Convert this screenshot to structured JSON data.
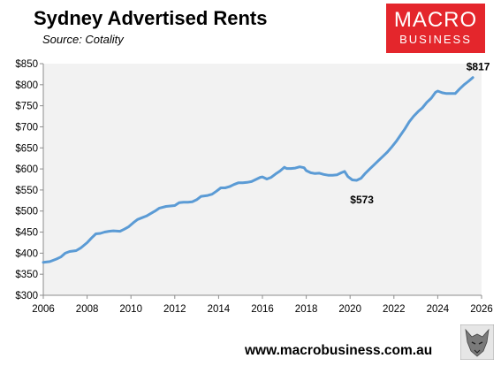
{
  "chart_data": {
    "type": "line",
    "title": "Sydney Advertised Rents",
    "subtitle": "Source: Cotality",
    "xlim": [
      2006,
      2026
    ],
    "ylim": [
      300,
      850
    ],
    "x_ticks": [
      2006,
      2008,
      2010,
      2012,
      2014,
      2016,
      2018,
      2020,
      2022,
      2024,
      2026
    ],
    "y_ticks": [
      "$300",
      "$350",
      "$400",
      "$450",
      "$500",
      "$550",
      "$600",
      "$650",
      "$700",
      "$750",
      "$800",
      "$850"
    ],
    "grid": false,
    "line_color": "#5b9bd5",
    "series": [
      {
        "values": [
          [
            2006.0,
            378
          ],
          [
            2006.3,
            380
          ],
          [
            2006.6,
            386
          ],
          [
            2006.8,
            391
          ],
          [
            2007.0,
            400
          ],
          [
            2007.2,
            404
          ],
          [
            2007.5,
            406
          ],
          [
            2007.7,
            412
          ],
          [
            2008.0,
            425
          ],
          [
            2008.2,
            436
          ],
          [
            2008.4,
            446
          ],
          [
            2008.6,
            447
          ],
          [
            2008.8,
            450
          ],
          [
            2009.0,
            452
          ],
          [
            2009.2,
            453
          ],
          [
            2009.5,
            452
          ],
          [
            2009.7,
            457
          ],
          [
            2009.9,
            463
          ],
          [
            2010.1,
            472
          ],
          [
            2010.3,
            480
          ],
          [
            2010.5,
            484
          ],
          [
            2010.7,
            488
          ],
          [
            2010.9,
            494
          ],
          [
            2011.1,
            500
          ],
          [
            2011.3,
            507
          ],
          [
            2011.6,
            511
          ],
          [
            2011.8,
            512
          ],
          [
            2012.0,
            513
          ],
          [
            2012.2,
            520
          ],
          [
            2012.4,
            521
          ],
          [
            2012.6,
            521
          ],
          [
            2012.8,
            522
          ],
          [
            2013.0,
            527
          ],
          [
            2013.2,
            535
          ],
          [
            2013.5,
            537
          ],
          [
            2013.7,
            540
          ],
          [
            2013.9,
            547
          ],
          [
            2014.1,
            555
          ],
          [
            2014.3,
            555
          ],
          [
            2014.5,
            558
          ],
          [
            2014.7,
            563
          ],
          [
            2014.9,
            567
          ],
          [
            2015.1,
            567
          ],
          [
            2015.3,
            568
          ],
          [
            2015.5,
            570
          ],
          [
            2015.7,
            575
          ],
          [
            2015.9,
            580
          ],
          [
            2016.0,
            581
          ],
          [
            2016.2,
            576
          ],
          [
            2016.4,
            580
          ],
          [
            2016.6,
            588
          ],
          [
            2016.8,
            595
          ],
          [
            2017.0,
            604
          ],
          [
            2017.1,
            601
          ],
          [
            2017.3,
            601
          ],
          [
            2017.5,
            602
          ],
          [
            2017.7,
            605
          ],
          [
            2017.9,
            603
          ],
          [
            2018.0,
            596
          ],
          [
            2018.2,
            591
          ],
          [
            2018.4,
            589
          ],
          [
            2018.6,
            590
          ],
          [
            2018.8,
            587
          ],
          [
            2019.0,
            585
          ],
          [
            2019.2,
            585
          ],
          [
            2019.4,
            586
          ],
          [
            2019.6,
            591
          ],
          [
            2019.75,
            594
          ],
          [
            2019.9,
            582
          ],
          [
            2020.1,
            574
          ],
          [
            2020.3,
            573
          ],
          [
            2020.5,
            578
          ],
          [
            2020.7,
            590
          ],
          [
            2020.9,
            600
          ],
          [
            2021.1,
            610
          ],
          [
            2021.3,
            620
          ],
          [
            2021.5,
            630
          ],
          [
            2021.7,
            640
          ],
          [
            2021.9,
            652
          ],
          [
            2022.1,
            665
          ],
          [
            2022.3,
            680
          ],
          [
            2022.5,
            695
          ],
          [
            2022.7,
            712
          ],
          [
            2022.9,
            725
          ],
          [
            2023.1,
            736
          ],
          [
            2023.3,
            745
          ],
          [
            2023.5,
            758
          ],
          [
            2023.7,
            768
          ],
          [
            2023.9,
            782
          ],
          [
            2024.0,
            785
          ],
          [
            2024.2,
            781
          ],
          [
            2024.4,
            779
          ],
          [
            2024.6,
            779
          ],
          [
            2024.8,
            779
          ],
          [
            2025.0,
            790
          ],
          [
            2025.2,
            800
          ],
          [
            2025.4,
            808
          ],
          [
            2025.6,
            817
          ]
        ]
      }
    ],
    "annotations": [
      {
        "label": "$573",
        "x": 2020.3,
        "y": 573,
        "position": "below"
      },
      {
        "label": "$817",
        "x": 2025.6,
        "y": 817,
        "position": "above"
      }
    ]
  },
  "logo": {
    "line1": "MACRO",
    "line2": "BUSINESS"
  },
  "footer": "www.macrobusiness.com.au"
}
